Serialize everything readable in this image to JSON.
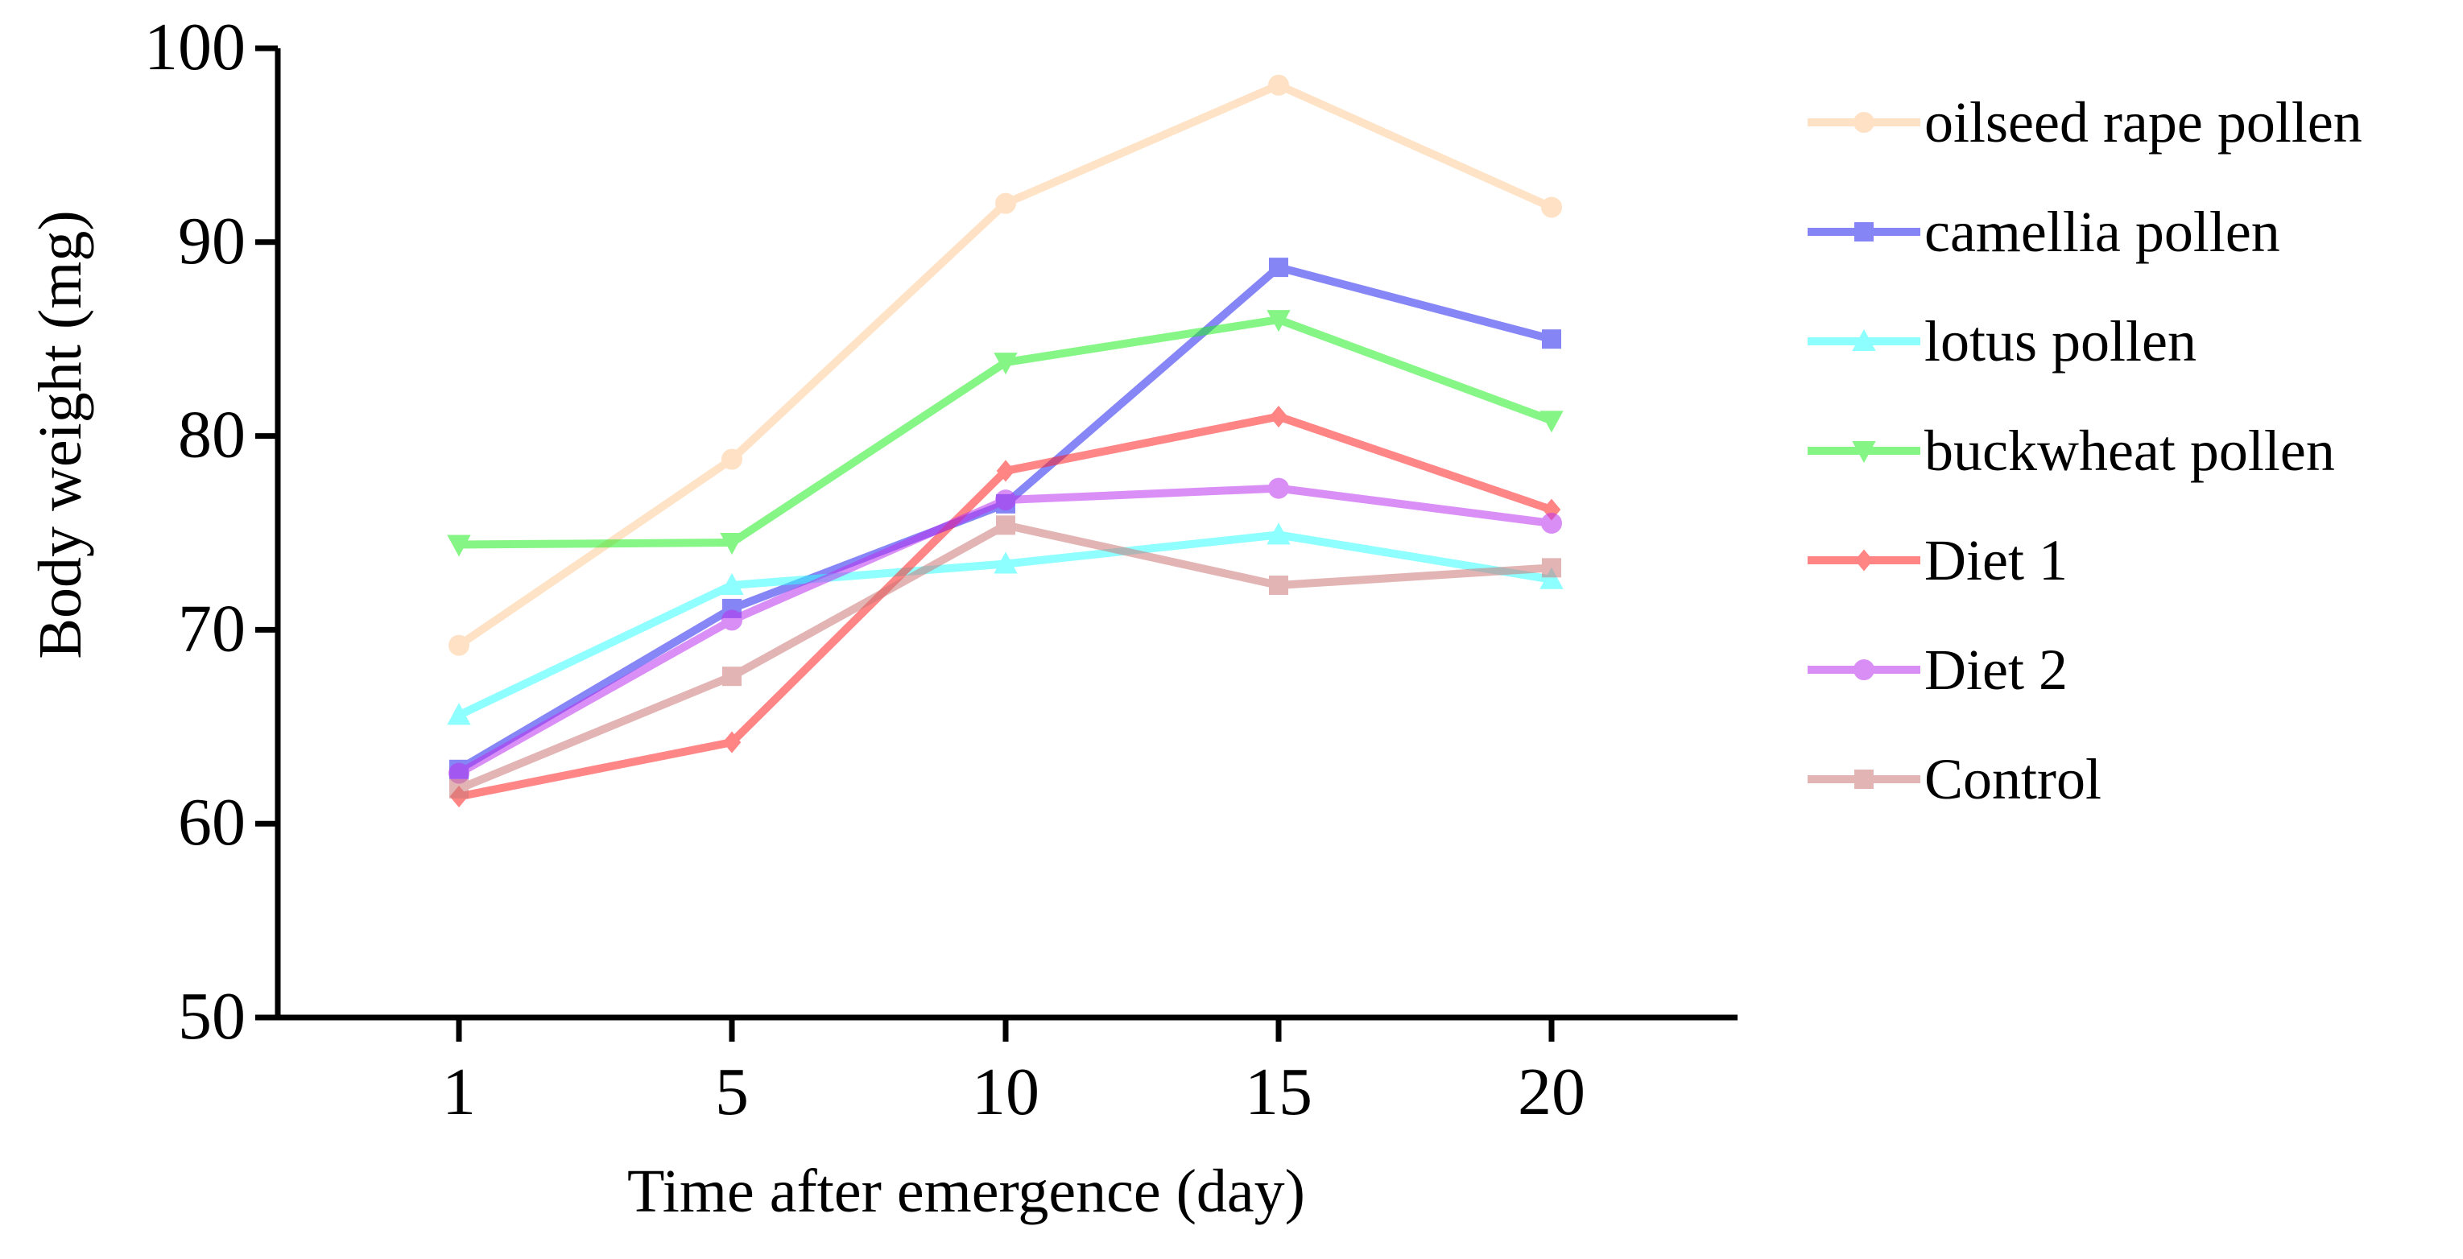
{
  "chart_data": {
    "type": "line",
    "title": "",
    "xlabel": "Time after emergence (day)",
    "ylabel": "Body weight (mg)",
    "categories": [
      "1",
      "5",
      "10",
      "15",
      "20"
    ],
    "yticks": [
      "50",
      "60",
      "70",
      "80",
      "90",
      "100"
    ],
    "ylim": [
      50,
      100
    ],
    "grid": false,
    "legend_position": "right",
    "series": [
      {
        "name": "oilseed rape pollen",
        "color": "#FFCC99",
        "marker": "circle",
        "values": [
          69.2,
          78.8,
          92.0,
          98.1,
          91.8
        ]
      },
      {
        "name": "camellia pollen",
        "color": "#2222EE",
        "marker": "square",
        "values": [
          62.8,
          71.1,
          76.5,
          88.7,
          85.0
        ]
      },
      {
        "name": "lotus pollen",
        "color": "#33FFFF",
        "marker": "triangle-up",
        "values": [
          65.6,
          72.3,
          73.4,
          74.9,
          72.6
        ]
      },
      {
        "name": "buckwheat pollen",
        "color": "#22EE22",
        "marker": "triangle-down",
        "values": [
          74.4,
          74.5,
          83.8,
          86.0,
          80.8
        ]
      },
      {
        "name": "Diet 1",
        "color": "#FF2222",
        "marker": "diamond",
        "values": [
          61.4,
          64.2,
          78.2,
          81.0,
          76.2
        ]
      },
      {
        "name": "Diet 2",
        "color": "#BB33EE",
        "marker": "circle",
        "values": [
          62.6,
          70.5,
          76.7,
          77.3,
          75.5
        ]
      },
      {
        "name": "Control",
        "color": "#CC7777",
        "marker": "square",
        "values": [
          61.8,
          67.6,
          75.4,
          72.3,
          73.2
        ]
      }
    ]
  }
}
